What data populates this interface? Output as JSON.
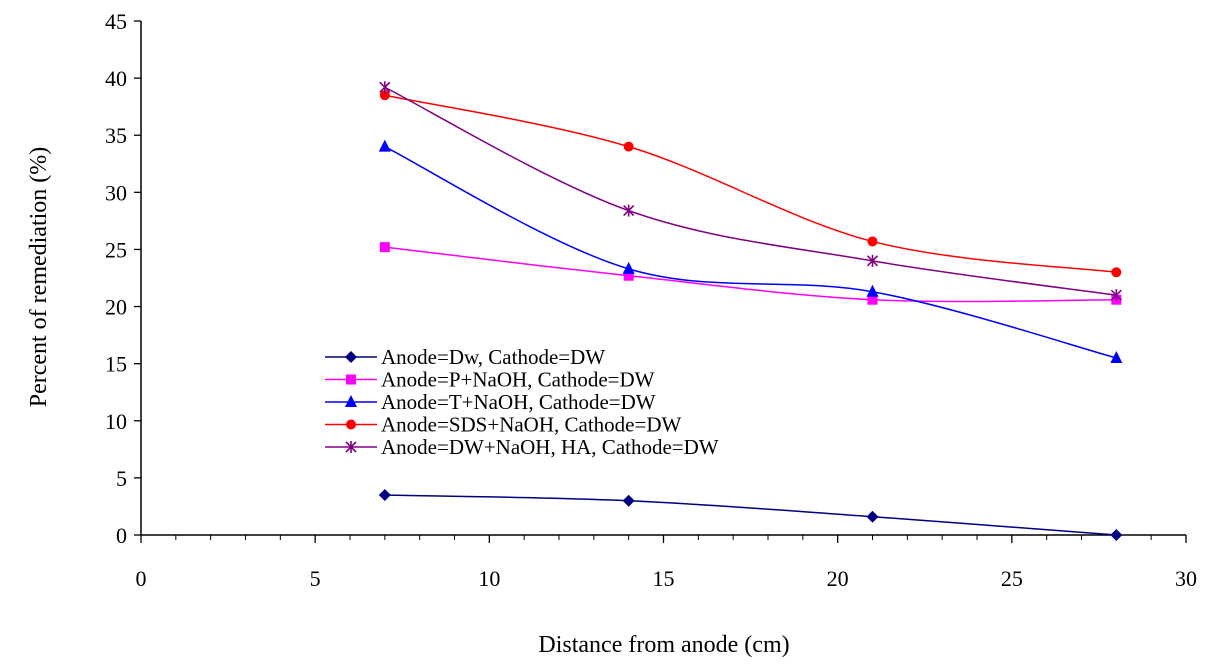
{
  "chart_data": {
    "type": "line",
    "xlabel": "Distance from anode (cm)",
    "ylabel": "Percent of remediation (%)",
    "xlim": [
      0,
      30
    ],
    "ylim": [
      0,
      45
    ],
    "x_ticks": [
      0,
      5,
      10,
      15,
      20,
      25,
      30
    ],
    "x_tick_labels": [
      "0",
      "5",
      "10",
      "15",
      "20",
      "25",
      "30"
    ],
    "y_ticks": [
      0,
      5,
      10,
      15,
      20,
      25,
      30,
      35,
      40,
      45
    ],
    "y_tick_labels": [
      "0",
      "5",
      "10",
      "15",
      "20",
      "25",
      "30",
      "35",
      "40",
      "45"
    ],
    "grid": false,
    "legend_position": "center-left",
    "x": [
      7,
      14,
      21,
      28
    ],
    "series": [
      {
        "name": "Anode=Dw, Cathode=DW",
        "values": [
          3.5,
          3.0,
          1.6,
          0.0
        ],
        "color": "#000080",
        "marker": "diamond"
      },
      {
        "name": "Anode=P+NaOH, Cathode=DW",
        "values": [
          25.2,
          22.7,
          20.6,
          20.6
        ],
        "color": "#ff00ff",
        "marker": "square"
      },
      {
        "name": "Anode=T+NaOH, Cathode=DW",
        "values": [
          34.0,
          23.3,
          21.3,
          15.5
        ],
        "color": "#0000ff",
        "marker": "triangle"
      },
      {
        "name": "Anode=SDS+NaOH, Cathode=DW",
        "values": [
          38.5,
          34.0,
          25.7,
          23.0
        ],
        "color": "#ff0000",
        "marker": "circle"
      },
      {
        "name": "Anode=DW+NaOH, HA, Cathode=DW",
        "values": [
          39.2,
          28.4,
          24.0,
          21.0
        ],
        "color": "#800080",
        "marker": "star"
      }
    ]
  }
}
